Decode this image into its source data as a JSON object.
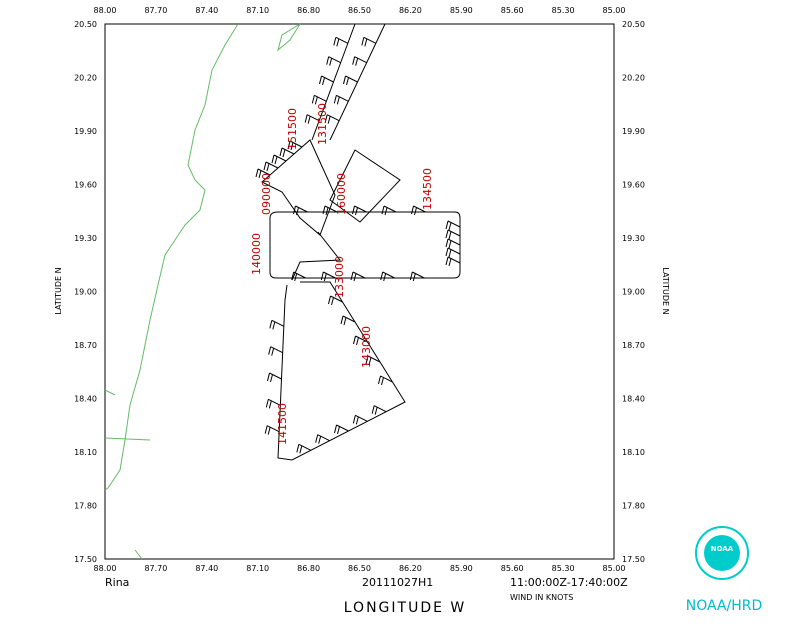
{
  "plot": {
    "storm": "Rina",
    "flight": "20111027H1",
    "time_range": "11:00:00Z-17:40:00Z",
    "units_note": "WIND IN KNOTS",
    "x_axis_label": "LONGITUDE  W",
    "y_axis_label": "LATITUDE  N",
    "lon_labels": [
      "88.00",
      "87.70",
      "87.40",
      "87.10",
      "86.80",
      "86.50",
      "86.20",
      "85.90",
      "85.60",
      "85.30",
      "85.00"
    ],
    "lat_labels": [
      "17.50",
      "17.80",
      "18.10",
      "18.40",
      "18.70",
      "19.00",
      "19.30",
      "19.60",
      "19.90",
      "20.20",
      "20.50"
    ],
    "time_labels": [
      "151500",
      "131500",
      "134500",
      "140000",
      "090000",
      "160000",
      "133000",
      "143000",
      "141500"
    ]
  },
  "logo": {
    "text": "NOAA/HRD",
    "badge": "NOAA"
  }
}
